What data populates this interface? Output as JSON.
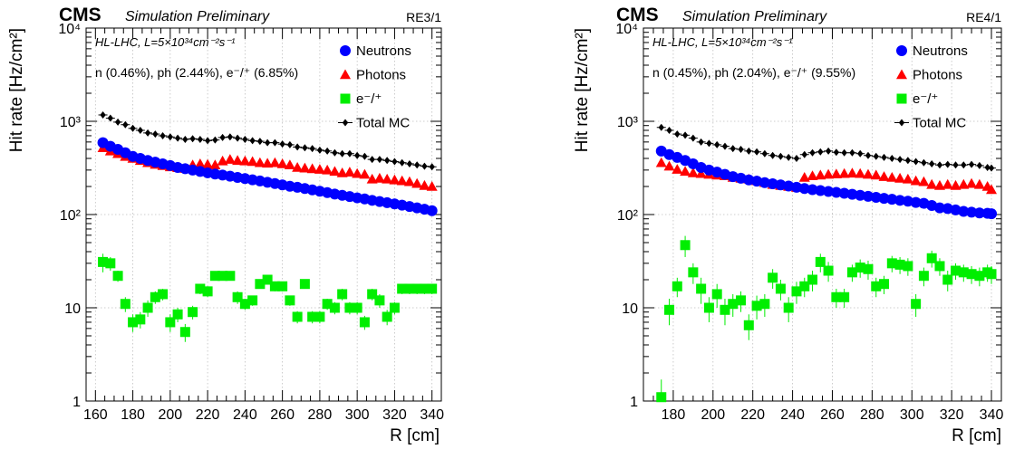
{
  "chart_data": [
    {
      "type": "scatter",
      "experiment": "CMS",
      "subtitle": "Simulation Preliminary",
      "chamber": "RE3/1",
      "lumi_text": "HL-LHC, L=5×10³⁴cm⁻²s⁻¹",
      "fractions_text": "n (0.46%), ph (2.44%), e⁻/⁺ (6.85%)",
      "xlabel": "R [cm]",
      "ylabel": "Hit rate [Hz/cm²]",
      "xlim": [
        155,
        345
      ],
      "ylim": [
        1,
        10000
      ],
      "yscale": "log",
      "grid": true,
      "legend_position": "top-right",
      "x_ticks": [
        160,
        180,
        200,
        220,
        240,
        260,
        280,
        300,
        320,
        340
      ],
      "y_tick_labels": [
        "1",
        "10",
        "10²",
        "10³",
        "10⁴"
      ],
      "x": [
        164,
        168,
        172,
        176,
        180,
        184,
        188,
        192,
        196,
        200,
        204,
        208,
        212,
        216,
        220,
        224,
        228,
        232,
        236,
        240,
        244,
        248,
        252,
        256,
        260,
        264,
        268,
        272,
        276,
        280,
        284,
        288,
        292,
        296,
        300,
        304,
        308,
        312,
        316,
        320,
        324,
        328,
        332,
        336,
        340
      ],
      "series": [
        {
          "name": "Neutrons",
          "color": "#0000ff",
          "marker": "circle",
          "values": [
            590,
            540,
            500,
            460,
            420,
            400,
            380,
            365,
            350,
            335,
            320,
            310,
            300,
            290,
            280,
            272,
            265,
            258,
            250,
            243,
            236,
            229,
            222,
            215,
            208,
            201,
            196,
            190,
            184,
            178,
            172,
            166,
            161,
            156,
            151,
            147,
            142,
            138,
            134,
            130,
            126,
            122,
            118,
            114,
            110
          ]
        },
        {
          "name": "Photons",
          "color": "#ff0000",
          "marker": "triangle",
          "values": [
            520,
            480,
            450,
            420,
            400,
            380,
            360,
            345,
            335,
            325,
            318,
            312,
            340,
            350,
            345,
            340,
            375,
            390,
            380,
            375,
            370,
            360,
            355,
            360,
            350,
            340,
            320,
            315,
            310,
            305,
            300,
            290,
            280,
            285,
            275,
            270,
            240,
            245,
            240,
            235,
            230,
            225,
            215,
            205,
            200
          ]
        },
        {
          "name": "e⁻/⁺",
          "color": "#00ee00",
          "marker": "square",
          "values": [
            31,
            30,
            22,
            11,
            7,
            7.5,
            10,
            13,
            14,
            7,
            8.5,
            5.5,
            9,
            16,
            15,
            22,
            22,
            22,
            13,
            11,
            12,
            18,
            20,
            17,
            17,
            12,
            8,
            18,
            8,
            8,
            11,
            10,
            14,
            10,
            10,
            7,
            14,
            12,
            8,
            10,
            16,
            16,
            16,
            16,
            16
          ],
          "errors": [
            7,
            5,
            3,
            2,
            1.5,
            1.5,
            2,
            2,
            2,
            1.5,
            1.5,
            1.2,
            1.5,
            2,
            2,
            2,
            2,
            2,
            2,
            1.5,
            1.5,
            2,
            2,
            2,
            2,
            1.5,
            1.2,
            2,
            1.2,
            1.2,
            1.5,
            1.5,
            2,
            1.5,
            1.5,
            1.2,
            2,
            2,
            1.5,
            1.5,
            2,
            2,
            2,
            2,
            2
          ]
        },
        {
          "name": "Total MC",
          "color": "#000000",
          "marker": "diamond",
          "values": [
            1170,
            1080,
            980,
            920,
            840,
            800,
            750,
            730,
            700,
            680,
            660,
            640,
            650,
            640,
            620,
            630,
            670,
            680,
            660,
            640,
            620,
            610,
            590,
            590,
            570,
            560,
            530,
            520,
            510,
            490,
            480,
            460,
            450,
            450,
            430,
            420,
            390,
            390,
            380,
            370,
            360,
            350,
            340,
            330,
            325
          ]
        }
      ]
    },
    {
      "type": "scatter",
      "experiment": "CMS",
      "subtitle": "Simulation Preliminary",
      "chamber": "RE4/1",
      "lumi_text": "HL-LHC, L=5×10³⁴cm⁻²s⁻¹",
      "fractions_text": "n (0.45%), ph (2.04%), e⁻/⁺ (9.55%)",
      "xlabel": "R [cm]",
      "ylabel": "Hit rate [Hz/cm²]",
      "xlim": [
        165,
        345
      ],
      "ylim": [
        1,
        10000
      ],
      "yscale": "log",
      "grid": true,
      "legend_position": "top-right",
      "x_ticks": [
        180,
        200,
        220,
        240,
        260,
        280,
        300,
        320,
        340
      ],
      "y_tick_labels": [
        "1",
        "10",
        "10²",
        "10³",
        "10⁴"
      ],
      "x": [
        174,
        178,
        182,
        186,
        190,
        194,
        198,
        202,
        206,
        210,
        214,
        218,
        222,
        226,
        230,
        234,
        238,
        242,
        246,
        250,
        254,
        258,
        262,
        266,
        270,
        274,
        278,
        282,
        286,
        290,
        294,
        298,
        302,
        306,
        310,
        314,
        318,
        322,
        326,
        330,
        334,
        338,
        340
      ],
      "series": [
        {
          "name": "Neutrons",
          "color": "#0000ff",
          "marker": "circle",
          "values": [
            480,
            440,
            410,
            380,
            350,
            320,
            300,
            285,
            270,
            255,
            245,
            235,
            228,
            220,
            214,
            208,
            202,
            196,
            190,
            185,
            181,
            177,
            173,
            169,
            165,
            161,
            157,
            153,
            149,
            146,
            142,
            139,
            135,
            132,
            125,
            118,
            116,
            112,
            108,
            106,
            104,
            103,
            102
          ]
        },
        {
          "name": "Photons",
          "color": "#ff0000",
          "marker": "triangle",
          "values": [
            360,
            330,
            305,
            290,
            280,
            275,
            270,
            265,
            260,
            250,
            245,
            240,
            230,
            220,
            210,
            205,
            200,
            195,
            250,
            260,
            265,
            270,
            272,
            275,
            278,
            275,
            270,
            265,
            255,
            250,
            245,
            240,
            230,
            225,
            210,
            205,
            210,
            205,
            210,
            215,
            210,
            200,
            185
          ]
        },
        {
          "name": "e⁻/⁺",
          "color": "#00ee00",
          "marker": "square",
          "values": [
            1.1,
            9.5,
            17,
            47,
            24,
            16,
            10,
            14,
            9.5,
            11,
            12,
            6.5,
            10.5,
            11,
            21,
            16,
            10,
            15,
            17,
            20,
            31,
            25,
            13,
            13,
            24,
            27,
            26,
            17,
            18,
            30,
            29,
            28,
            11,
            22,
            34,
            28,
            20,
            25,
            24,
            23,
            22,
            24,
            23
          ],
          "errors": [
            0.6,
            3,
            4,
            12,
            6,
            5,
            3,
            4,
            3,
            3,
            3,
            2,
            3,
            3,
            5,
            4,
            3,
            4,
            4,
            5,
            7,
            6,
            3,
            3,
            5,
            6,
            6,
            4,
            4,
            6,
            6,
            6,
            3,
            5,
            7,
            6,
            5,
            5,
            5,
            5,
            5,
            5,
            5
          ]
        },
        {
          "name": "Total MC",
          "color": "#000000",
          "marker": "diamond",
          "values": [
            860,
            800,
            730,
            710,
            660,
            600,
            580,
            560,
            540,
            510,
            500,
            480,
            470,
            450,
            430,
            420,
            410,
            400,
            440,
            460,
            470,
            480,
            465,
            460,
            460,
            450,
            430,
            420,
            410,
            400,
            390,
            380,
            370,
            360,
            350,
            340,
            345,
            340,
            340,
            345,
            335,
            320,
            315
          ]
        }
      ]
    }
  ]
}
